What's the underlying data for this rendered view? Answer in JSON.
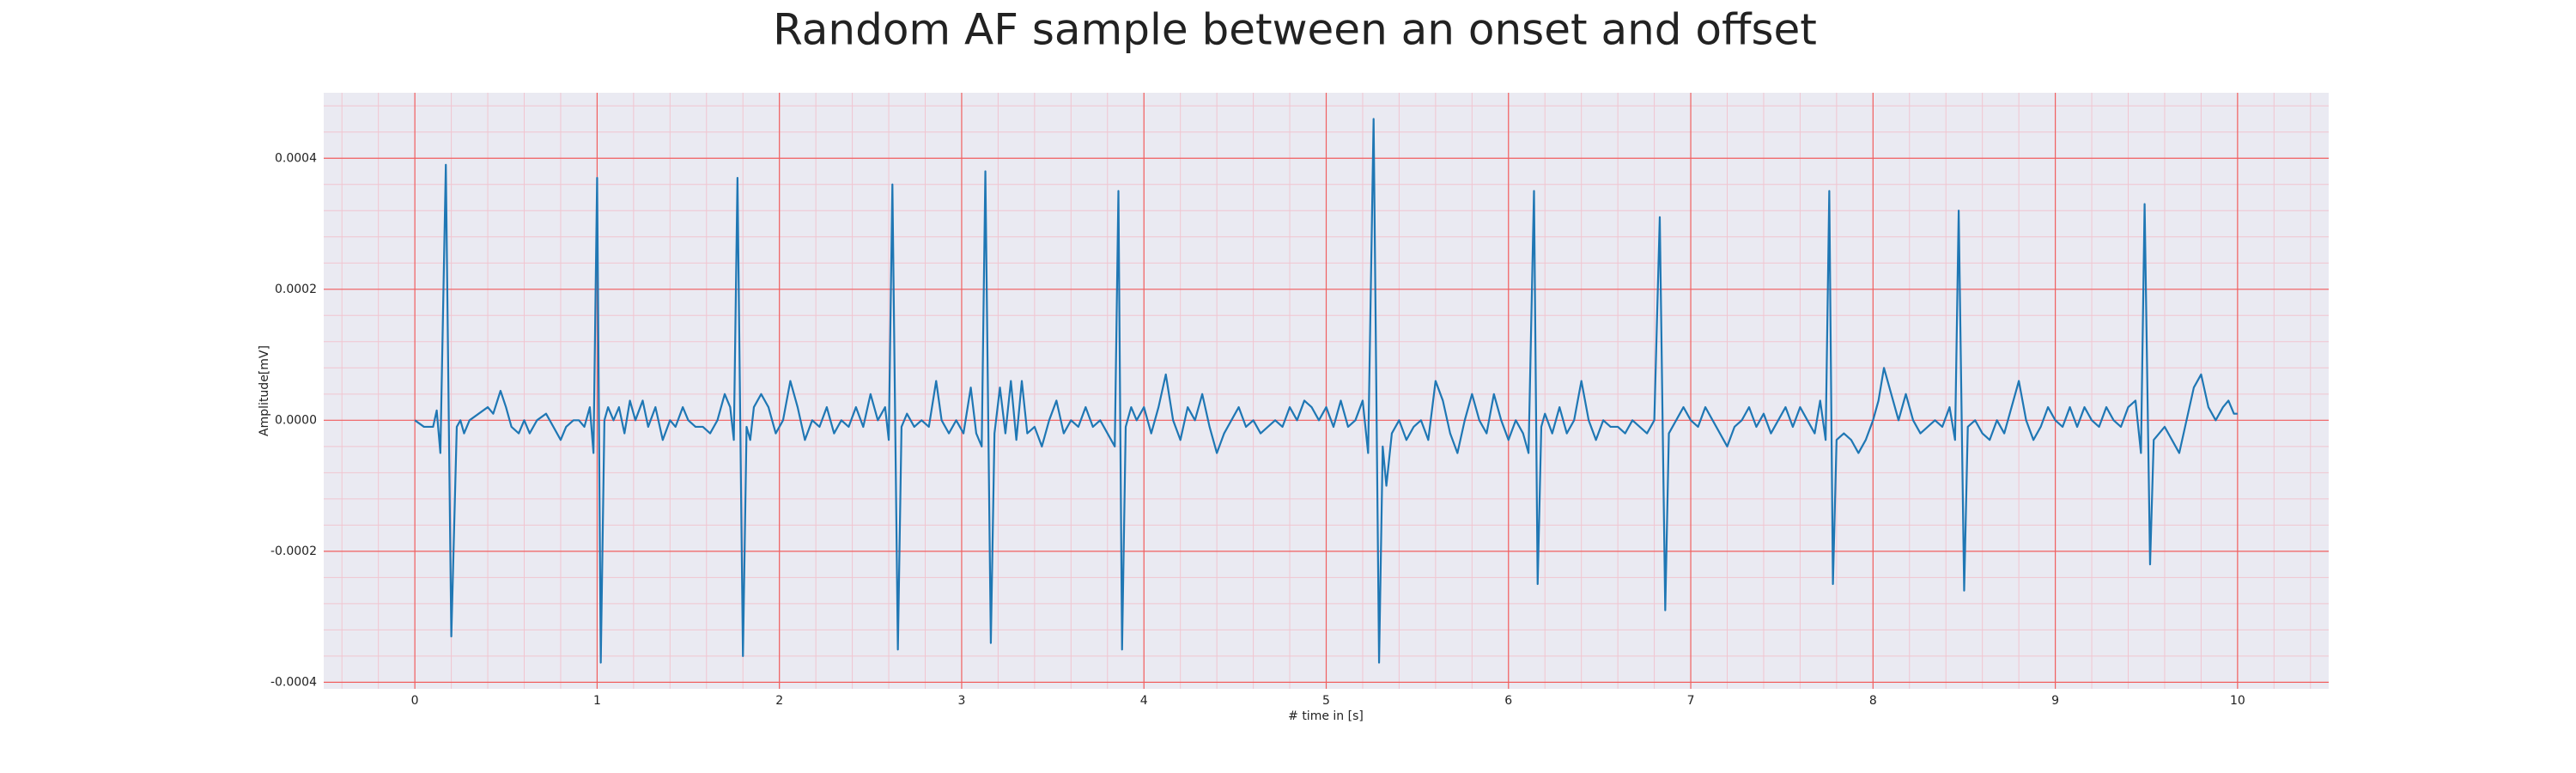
{
  "chart_data": {
    "type": "line",
    "title": "Random AF sample between an onset and offset",
    "x_label": "# time in [s]",
    "y_label": "Amplitude[mV]",
    "color": "#1f77b4",
    "grid": true,
    "xlim": [
      -0.5,
      10.5
    ],
    "xticks": [
      0,
      1,
      2,
      3,
      4,
      5,
      6,
      7,
      8,
      9,
      10
    ],
    "ylim": [
      -0.00041,
      0.0005
    ],
    "yticks": [
      -0.0004,
      -0.0002,
      {
        "value": 0,
        "label": "0.0000"
      },
      0.0002,
      0.0004
    ],
    "x": [
      0,
      0.05,
      0.1,
      0.12,
      0.14,
      0.17,
      0.2,
      0.23,
      0.25,
      0.27,
      0.3,
      0.35,
      0.4,
      0.43,
      0.47,
      0.5,
      0.53,
      0.57,
      0.6,
      0.63,
      0.67,
      0.72,
      0.76,
      0.8,
      0.83,
      0.87,
      0.9,
      0.93,
      0.96,
      0.98,
      1.0,
      1.02,
      1.04,
      1.06,
      1.09,
      1.12,
      1.15,
      1.18,
      1.21,
      1.25,
      1.28,
      1.32,
      1.36,
      1.4,
      1.43,
      1.47,
      1.5,
      1.54,
      1.58,
      1.62,
      1.66,
      1.7,
      1.73,
      1.75,
      1.77,
      1.8,
      1.82,
      1.84,
      1.86,
      1.9,
      1.94,
      1.98,
      2.02,
      2.06,
      2.1,
      2.14,
      2.18,
      2.22,
      2.26,
      2.3,
      2.34,
      2.38,
      2.42,
      2.46,
      2.5,
      2.54,
      2.58,
      2.6,
      2.62,
      2.65,
      2.67,
      2.7,
      2.74,
      2.78,
      2.82,
      2.86,
      2.89,
      2.93,
      2.97,
      3.01,
      3.05,
      3.08,
      3.11,
      3.13,
      3.16,
      3.18,
      3.21,
      3.24,
      3.27,
      3.3,
      3.33,
      3.36,
      3.4,
      3.44,
      3.48,
      3.52,
      3.56,
      3.6,
      3.64,
      3.68,
      3.72,
      3.76,
      3.8,
      3.84,
      3.86,
      3.88,
      3.9,
      3.93,
      3.96,
      4.0,
      4.04,
      4.08,
      4.12,
      4.16,
      4.2,
      4.24,
      4.28,
      4.32,
      4.36,
      4.4,
      4.44,
      4.48,
      4.52,
      4.56,
      4.6,
      4.64,
      4.68,
      4.72,
      4.76,
      4.8,
      4.84,
      4.88,
      4.92,
      4.96,
      5.0,
      5.04,
      5.08,
      5.12,
      5.16,
      5.2,
      5.23,
      5.26,
      5.29,
      5.31,
      5.33,
      5.36,
      5.4,
      5.44,
      5.48,
      5.52,
      5.56,
      5.6,
      5.64,
      5.68,
      5.72,
      5.76,
      5.8,
      5.84,
      5.88,
      5.92,
      5.96,
      6.0,
      6.04,
      6.08,
      6.11,
      6.14,
      6.16,
      6.18,
      6.2,
      6.24,
      6.28,
      6.32,
      6.36,
      6.4,
      6.44,
      6.48,
      6.52,
      6.56,
      6.6,
      6.64,
      6.68,
      6.72,
      6.76,
      6.8,
      6.83,
      6.86,
      6.88,
      6.92,
      6.96,
      7.0,
      7.04,
      7.08,
      7.12,
      7.16,
      7.2,
      7.24,
      7.28,
      7.32,
      7.36,
      7.4,
      7.44,
      7.48,
      7.52,
      7.56,
      7.6,
      7.64,
      7.68,
      7.71,
      7.74,
      7.76,
      7.78,
      7.8,
      7.84,
      7.88,
      7.92,
      7.96,
      8.0,
      8.03,
      8.06,
      8.1,
      8.14,
      8.18,
      8.22,
      8.26,
      8.3,
      8.34,
      8.38,
      8.42,
      8.45,
      8.47,
      8.5,
      8.52,
      8.56,
      8.6,
      8.64,
      8.68,
      8.72,
      8.76,
      8.8,
      8.84,
      8.88,
      8.92,
      8.96,
      9.0,
      9.04,
      9.08,
      9.12,
      9.16,
      9.2,
      9.24,
      9.28,
      9.32,
      9.36,
      9.4,
      9.44,
      9.47,
      9.49,
      9.52,
      9.54,
      9.57,
      9.6,
      9.64,
      9.68,
      9.72,
      9.76,
      9.8,
      9.84,
      9.88,
      9.92,
      9.95,
      9.98,
      10.0
    ],
    "values": [
      0,
      -1e-05,
      -1e-05,
      1.5e-05,
      -5e-05,
      0.00039,
      -0.00033,
      -1e-05,
      0,
      -2e-05,
      0,
      1e-05,
      2e-05,
      1e-05,
      4.5e-05,
      2e-05,
      -1e-05,
      -2e-05,
      0,
      -2e-05,
      0,
      1e-05,
      -1e-05,
      -3e-05,
      -1e-05,
      0,
      0,
      -1e-05,
      2e-05,
      -5e-05,
      0.00037,
      -0.00037,
      0,
      2e-05,
      0,
      2e-05,
      -2e-05,
      3e-05,
      0,
      3e-05,
      -1e-05,
      2e-05,
      -3e-05,
      0,
      -1e-05,
      2e-05,
      0,
      -1e-05,
      -1e-05,
      -2e-05,
      0,
      4e-05,
      2e-05,
      -3e-05,
      0.00037,
      -0.00036,
      -1e-05,
      -3e-05,
      2e-05,
      4e-05,
      2e-05,
      -2e-05,
      0,
      6e-05,
      2e-05,
      -3e-05,
      0,
      -1e-05,
      2e-05,
      -2e-05,
      0,
      -1e-05,
      2e-05,
      -1e-05,
      4e-05,
      0,
      2e-05,
      -3e-05,
      0.00036,
      -0.00035,
      -1e-05,
      1e-05,
      -1e-05,
      0,
      -1e-05,
      6e-05,
      0,
      -2e-05,
      0,
      -2e-05,
      5e-05,
      -2e-05,
      -4e-05,
      0.00038,
      -0.00034,
      -2e-05,
      5e-05,
      -2e-05,
      6e-05,
      -3e-05,
      6e-05,
      -2e-05,
      -1e-05,
      -4e-05,
      0,
      3e-05,
      -2e-05,
      0,
      -1e-05,
      2e-05,
      -1e-05,
      0,
      -2e-05,
      -4e-05,
      0.00035,
      -0.00035,
      -1e-05,
      2e-05,
      0,
      2e-05,
      -2e-05,
      2e-05,
      7e-05,
      0,
      -3e-05,
      2e-05,
      0,
      4e-05,
      -1e-05,
      -5e-05,
      -2e-05,
      0,
      2e-05,
      -1e-05,
      0,
      -2e-05,
      -1e-05,
      0,
      -1e-05,
      2e-05,
      0,
      3e-05,
      2e-05,
      0,
      2e-05,
      -1e-05,
      3e-05,
      -1e-05,
      0,
      3e-05,
      -5e-05,
      0.00046,
      -0.00037,
      -4e-05,
      -0.0001,
      -2e-05,
      0,
      -3e-05,
      -1e-05,
      0,
      -3e-05,
      6e-05,
      3e-05,
      -2e-05,
      -5e-05,
      0,
      4e-05,
      0,
      -2e-05,
      4e-05,
      0,
      -3e-05,
      0,
      -2e-05,
      -5e-05,
      0.00035,
      -0.00025,
      -1e-05,
      1e-05,
      -2e-05,
      2e-05,
      -2e-05,
      0,
      6e-05,
      0,
      -3e-05,
      0,
      -1e-05,
      -1e-05,
      -2e-05,
      0,
      -1e-05,
      -2e-05,
      0,
      0.00031,
      -0.00029,
      -2e-05,
      0,
      2e-05,
      0,
      -1e-05,
      2e-05,
      0,
      -2e-05,
      -4e-05,
      -1e-05,
      0,
      2e-05,
      -1e-05,
      1e-05,
      -2e-05,
      0,
      2e-05,
      -1e-05,
      2e-05,
      0,
      -2e-05,
      3e-05,
      -3e-05,
      0.00035,
      -0.00025,
      -3e-05,
      -2e-05,
      -3e-05,
      -5e-05,
      -3e-05,
      0,
      3e-05,
      8e-05,
      4e-05,
      0,
      4e-05,
      0,
      -2e-05,
      -1e-05,
      0,
      -1e-05,
      2e-05,
      -3e-05,
      0.00032,
      -0.00026,
      -1e-05,
      0,
      -2e-05,
      -3e-05,
      0,
      -2e-05,
      2e-05,
      6e-05,
      0,
      -3e-05,
      -1e-05,
      2e-05,
      0,
      -1e-05,
      2e-05,
      -1e-05,
      2e-05,
      0,
      -1e-05,
      2e-05,
      0,
      -1e-05,
      2e-05,
      3e-05,
      -5e-05,
      0.00033,
      -0.00022,
      -3e-05,
      -2e-05,
      -1e-05,
      -3e-05,
      -5e-05,
      0,
      5e-05,
      7e-05,
      2e-05,
      0,
      2e-05,
      3e-05,
      1e-05,
      1e-05
    ]
  }
}
